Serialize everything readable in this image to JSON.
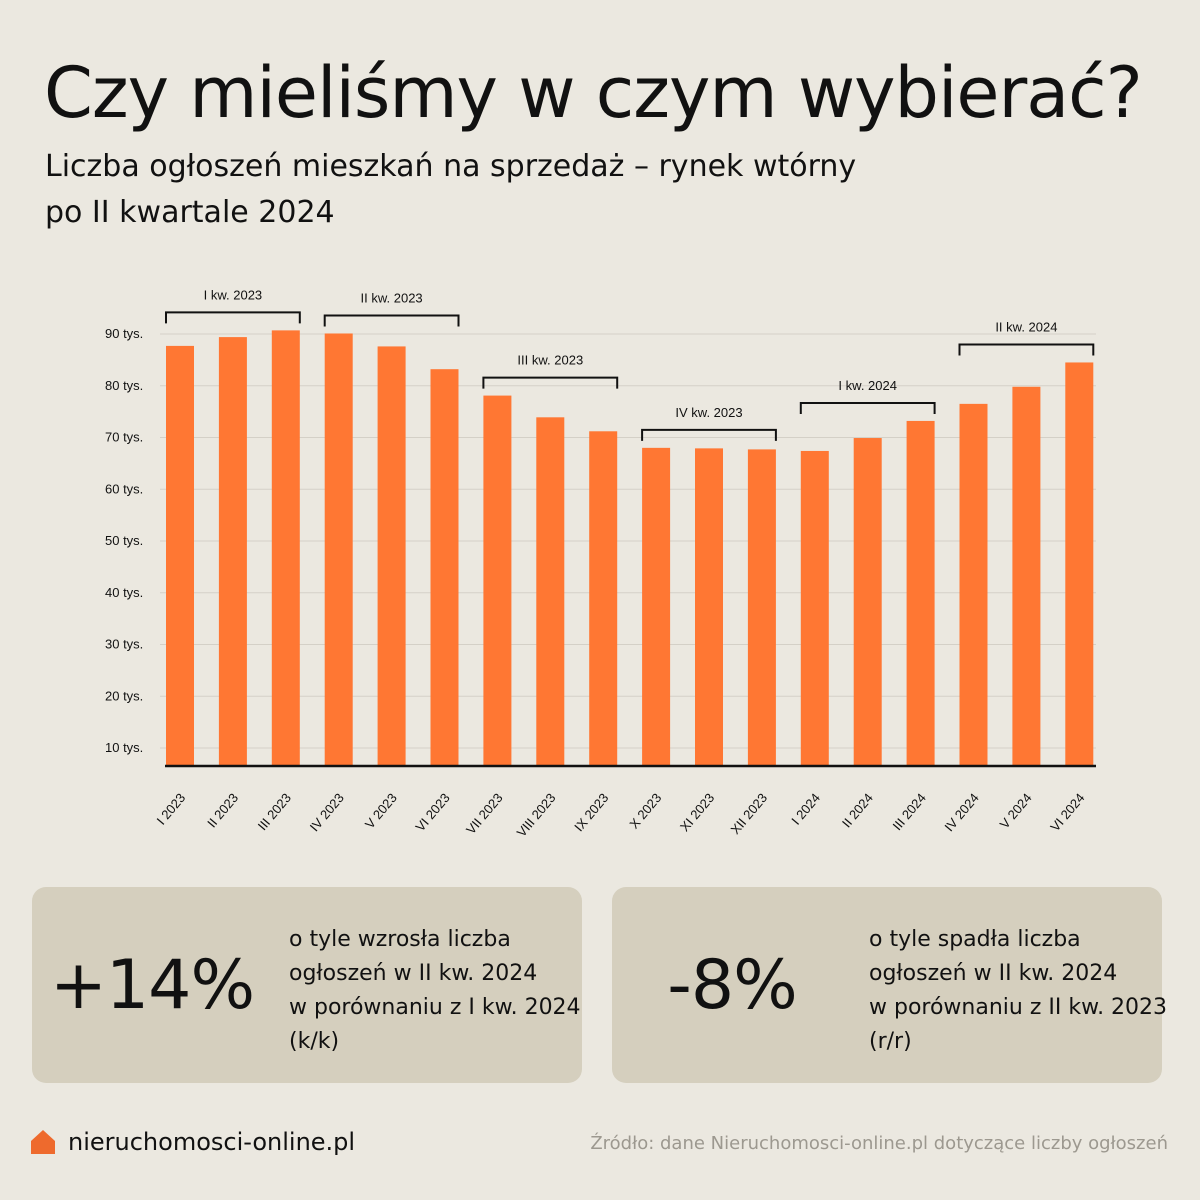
{
  "title": "Czy mieliśmy w czym wybierać?",
  "subtitle_line1": "Liczba ogłoszeń mieszkań na sprzedaż – rynek wtórny",
  "subtitle_line2": "po II kwartale 2024",
  "colors": {
    "bar": "#ff7733",
    "background": "#ebe8e0",
    "card": "#d5cfbe",
    "grid": "#d4d0c7",
    "text": "#111111",
    "source": "#9c988f",
    "logo": "#ee6a2d"
  },
  "chart_data": {
    "type": "bar",
    "title": "Liczba ogłoszeń mieszkań na sprzedaż – rynek wtórny",
    "xlabel": "",
    "ylabel": "",
    "ylim": [
      6,
      92
    ],
    "grid": true,
    "yticks": [
      10,
      20,
      30,
      40,
      50,
      60,
      70,
      80,
      90
    ],
    "ytick_labels": [
      "10 tys.",
      "20 tys.",
      "30 tys.",
      "40 tys.",
      "50 tys.",
      "60 tys.",
      "70 tys.",
      "80 tys.",
      "90 tys."
    ],
    "categories": [
      "I 2023",
      "II 2023",
      "III 2023",
      "IV 2023",
      "V 2023",
      "VI 2023",
      "VII 2023",
      "VIII 2023",
      "IX 2023",
      "X 2023",
      "XI 2023",
      "XII 2023",
      "I 2024",
      "II 2024",
      "III 2024",
      "IV 2024",
      "V 2024",
      "VI 2024"
    ],
    "values": [
      87.7,
      89.4,
      90.7,
      90.1,
      87.6,
      83.2,
      78.1,
      73.9,
      71.2,
      68.0,
      67.9,
      67.7,
      67.4,
      69.9,
      73.2,
      76.5,
      79.8,
      84.5
    ],
    "quarter_groups": [
      {
        "label": "I kw. 2023",
        "start": 0,
        "end": 2
      },
      {
        "label": "II kw. 2023",
        "start": 3,
        "end": 5
      },
      {
        "label": "III kw. 2023",
        "start": 6,
        "end": 8
      },
      {
        "label": "IV kw. 2023",
        "start": 9,
        "end": 11
      },
      {
        "label": "I kw. 2024",
        "start": 12,
        "end": 14
      },
      {
        "label": "II kw. 2024",
        "start": 15,
        "end": 17
      }
    ]
  },
  "stats": [
    {
      "value": "+14%",
      "desc": [
        "o tyle wzrosła liczba",
        "ogłoszeń w II kw. 2024",
        "w porównaniu z I kw. 2024",
        "(k/k)"
      ]
    },
    {
      "value": "-8%",
      "desc": [
        "o tyle spadła liczba",
        "ogłoszeń w II kw. 2024",
        "w porównaniu z II kw. 2023",
        "(r/r)"
      ]
    }
  ],
  "footer": {
    "logo_icon": "house-icon",
    "brand": "nieruchomosci-online.pl",
    "source": "Źródło: dane Nieruchomosci-online.pl dotyczące liczby ogłoszeń"
  }
}
